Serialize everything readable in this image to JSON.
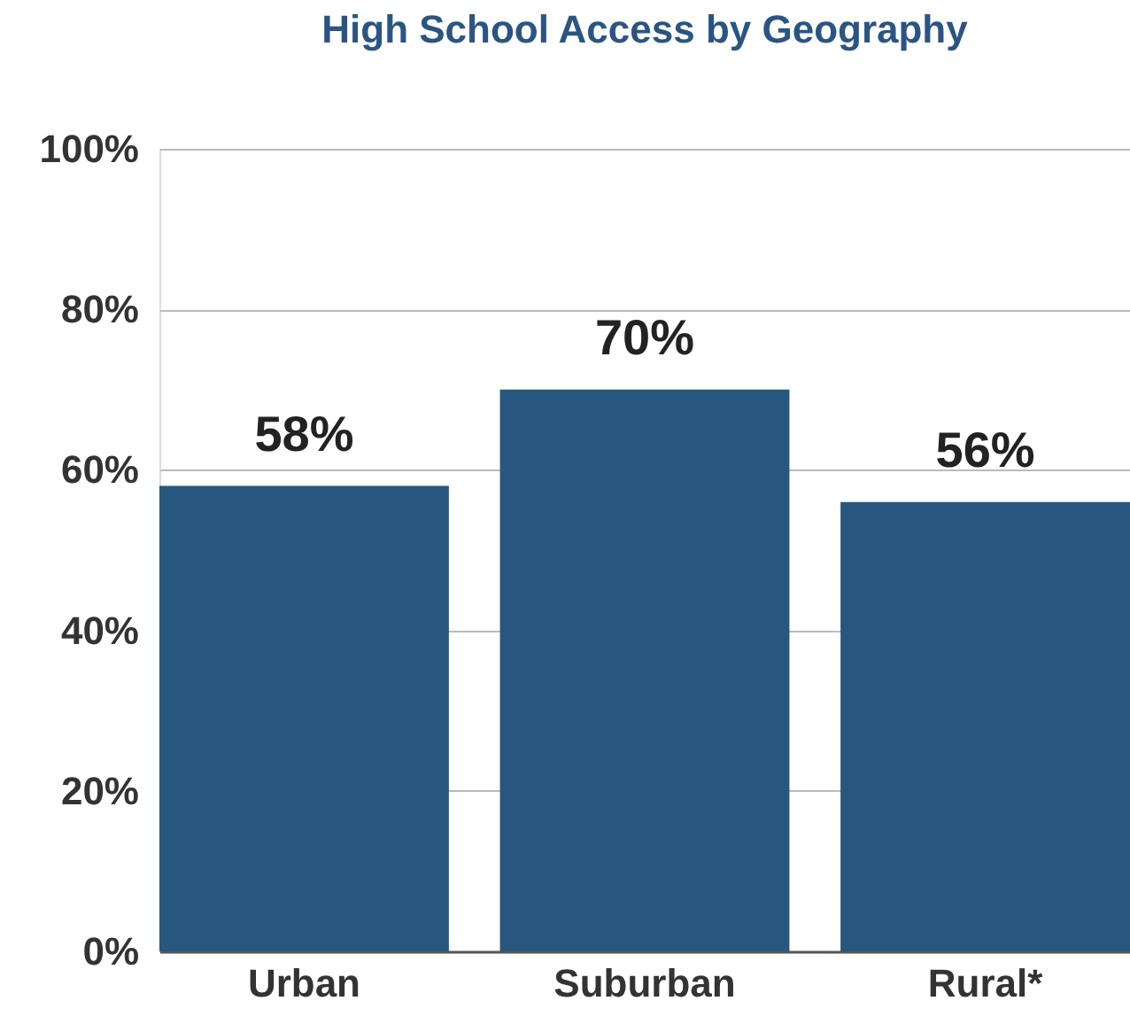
{
  "chart_data": {
    "type": "bar",
    "title": "High School Access by Geography",
    "categories": [
      "Urban",
      "Suburban",
      "Rural*"
    ],
    "values": [
      58,
      70,
      56
    ],
    "value_labels": [
      "58%",
      "70%",
      "56%"
    ],
    "color": "#27577f",
    "ylim": [
      0,
      100
    ],
    "yticks": [
      {
        "value": 0,
        "label": "0%"
      },
      {
        "value": 20,
        "label": "20%"
      },
      {
        "value": 40,
        "label": "40%"
      },
      {
        "value": 60,
        "label": "60%"
      },
      {
        "value": 80,
        "label": "80%"
      },
      {
        "value": 100,
        "label": "100%"
      }
    ],
    "grid": "y"
  }
}
